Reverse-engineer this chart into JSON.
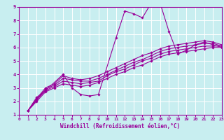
{
  "title": "",
  "xlabel": "Windchill (Refroidissement éolien,°C)",
  "ylabel": "",
  "xlim": [
    0,
    23
  ],
  "ylim": [
    1,
    9
  ],
  "xticks": [
    0,
    1,
    2,
    3,
    4,
    5,
    6,
    7,
    8,
    9,
    10,
    11,
    12,
    13,
    14,
    15,
    16,
    17,
    18,
    19,
    20,
    21,
    22,
    23
  ],
  "yticks": [
    1,
    2,
    3,
    4,
    5,
    6,
    7,
    8,
    9
  ],
  "background_color": "#c8eef0",
  "axes_bg_color": "#c8eef0",
  "line_color": "#990099",
  "grid_color": "#ffffff",
  "figsize": [
    3.2,
    2.0
  ],
  "dpi": 100,
  "lines": [
    {
      "x": [
        1,
        2,
        3,
        5,
        6,
        7,
        8,
        9,
        11,
        12,
        13,
        14,
        15,
        16,
        17,
        18,
        19,
        20,
        21,
        22,
        23
      ],
      "y": [
        1.3,
        2.3,
        2.8,
        4.0,
        3.0,
        2.5,
        2.4,
        2.5,
        6.7,
        8.7,
        8.5,
        8.2,
        9.3,
        9.3,
        7.2,
        5.5,
        5.8,
        6.2,
        6.4,
        6.2,
        6.0
      ]
    },
    {
      "x": [
        1,
        2,
        3,
        4,
        5,
        6,
        7,
        8,
        9,
        10,
        11,
        12,
        13,
        14,
        15,
        16,
        17,
        18,
        19,
        20,
        21,
        22,
        23
      ],
      "y": [
        1.3,
        2.0,
        2.7,
        3.0,
        3.3,
        3.2,
        3.1,
        3.2,
        3.4,
        3.7,
        4.0,
        4.2,
        4.5,
        4.7,
        5.0,
        5.3,
        5.5,
        5.6,
        5.7,
        5.8,
        5.9,
        6.0,
        6.0
      ]
    },
    {
      "x": [
        1,
        2,
        3,
        4,
        5,
        6,
        7,
        8,
        9,
        10,
        11,
        12,
        13,
        14,
        15,
        16,
        17,
        18,
        19,
        20,
        21,
        22,
        23
      ],
      "y": [
        1.3,
        2.1,
        2.8,
        3.1,
        3.5,
        3.4,
        3.3,
        3.4,
        3.5,
        3.9,
        4.2,
        4.4,
        4.7,
        5.0,
        5.2,
        5.5,
        5.7,
        5.8,
        5.9,
        6.0,
        6.1,
        6.1,
        6.1
      ]
    },
    {
      "x": [
        1,
        2,
        3,
        4,
        5,
        6,
        7,
        8,
        9,
        10,
        11,
        12,
        13,
        14,
        15,
        16,
        17,
        18,
        19,
        20,
        21,
        22,
        23
      ],
      "y": [
        1.3,
        2.1,
        2.9,
        3.2,
        3.7,
        3.6,
        3.5,
        3.5,
        3.7,
        4.0,
        4.3,
        4.6,
        4.9,
        5.1,
        5.4,
        5.7,
        5.9,
        6.0,
        6.1,
        6.2,
        6.3,
        6.3,
        6.1
      ]
    },
    {
      "x": [
        1,
        2,
        3,
        4,
        5,
        6,
        7,
        8,
        9,
        10,
        11,
        12,
        13,
        14,
        15,
        16,
        17,
        18,
        19,
        20,
        21,
        22,
        23
      ],
      "y": [
        1.3,
        2.2,
        3.0,
        3.3,
        3.9,
        3.7,
        3.6,
        3.7,
        3.9,
        4.2,
        4.5,
        4.8,
        5.1,
        5.4,
        5.6,
        5.9,
        6.1,
        6.2,
        6.3,
        6.4,
        6.5,
        6.4,
        6.2
      ]
    }
  ]
}
